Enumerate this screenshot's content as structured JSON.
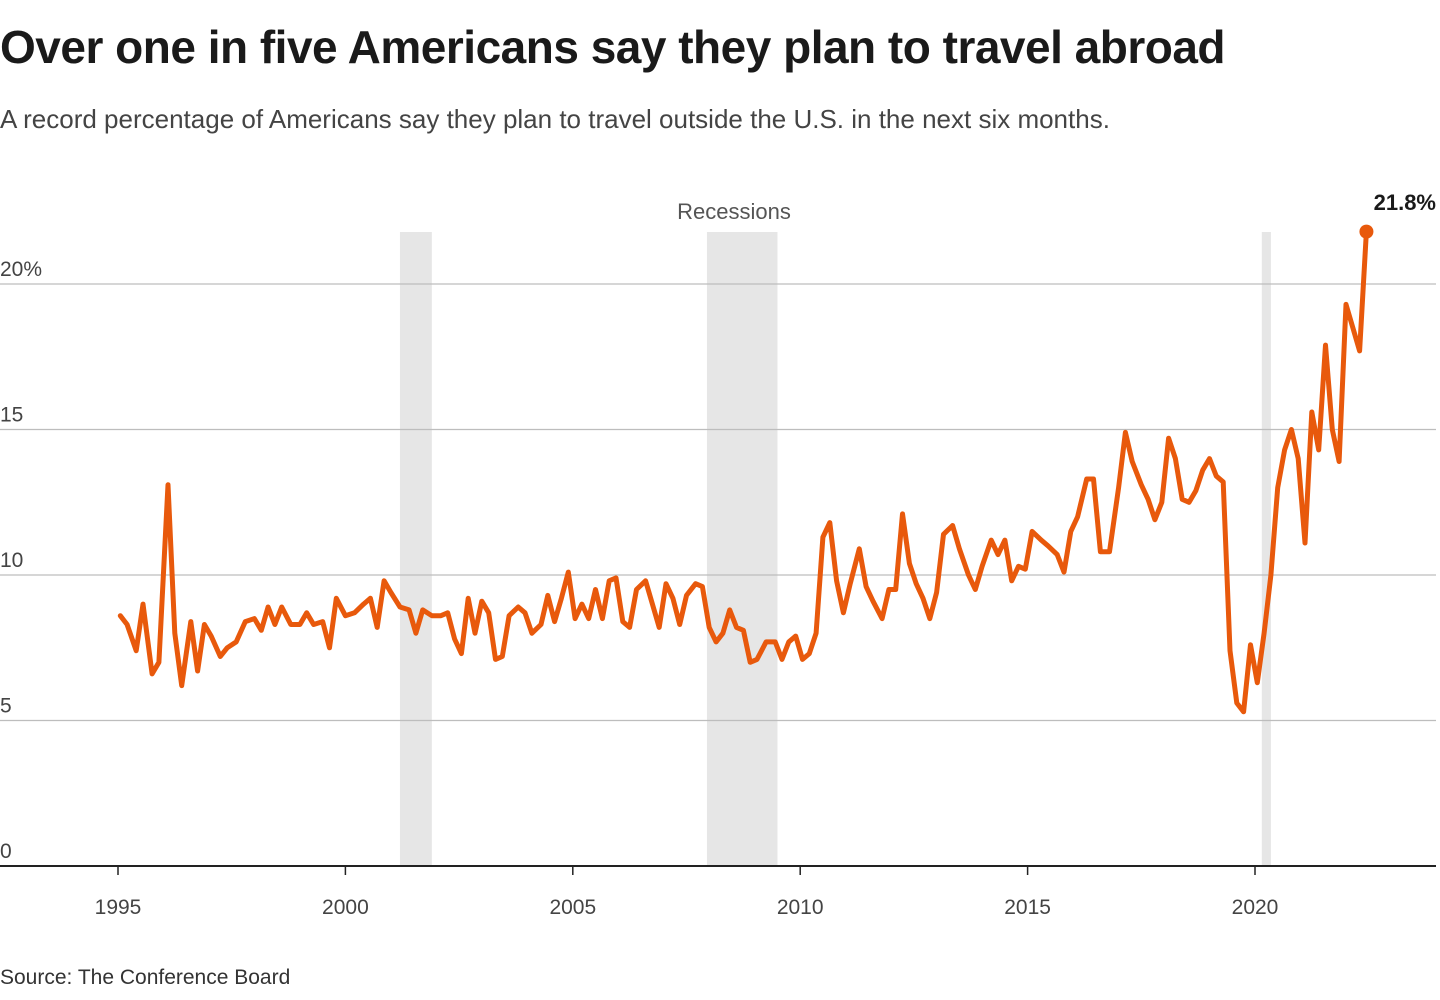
{
  "title": "Over one in five Americans say they plan to travel abroad",
  "subtitle": "A record percentage of Americans say they plan to travel outside the U.S. in the next six months.",
  "source": "Source: The Conference Board",
  "colors": {
    "line": "#e8590c",
    "recession": "#e6e6e6",
    "grid": "#bdbdbd",
    "axis": "#222222"
  },
  "chart_data": {
    "type": "line",
    "title": "Over one in five Americans say they plan to travel abroad",
    "xlabel": "",
    "ylabel": "",
    "ylim": [
      0,
      20
    ],
    "xlim": [
      1994.8,
      2023.8
    ],
    "y_ticks": [
      {
        "value": 0,
        "label": "0"
      },
      {
        "value": 5,
        "label": "5"
      },
      {
        "value": 10,
        "label": "10"
      },
      {
        "value": 15,
        "label": "15"
      },
      {
        "value": 20,
        "label": "20%"
      }
    ],
    "x_ticks": [
      {
        "value": 1995,
        "label": "1995"
      },
      {
        "value": 2000,
        "label": "2000"
      },
      {
        "value": 2005,
        "label": "2005"
      },
      {
        "value": 2010,
        "label": "2010"
      },
      {
        "value": 2015,
        "label": "2015"
      },
      {
        "value": 2020,
        "label": "2020"
      }
    ],
    "grid": true,
    "recessions_label": "Recessions",
    "recessions": [
      [
        2001.2,
        2001.9
      ],
      [
        2007.95,
        2009.5
      ],
      [
        2020.15,
        2020.35
      ]
    ],
    "annotation": {
      "x": 2023.6,
      "y": 21.8,
      "label": "21.8%"
    },
    "series": [
      {
        "points": [
          [
            1995.05,
            8.6
          ],
          [
            1995.2,
            8.3
          ],
          [
            1995.4,
            7.4
          ],
          [
            1995.55,
            9.0
          ],
          [
            1995.75,
            6.6
          ],
          [
            1995.9,
            7.0
          ],
          [
            1996.1,
            13.1
          ],
          [
            1996.25,
            8.0
          ],
          [
            1996.4,
            6.2
          ],
          [
            1996.6,
            8.4
          ],
          [
            1996.75,
            6.7
          ],
          [
            1996.9,
            8.3
          ],
          [
            1997.05,
            7.9
          ],
          [
            1997.25,
            7.2
          ],
          [
            1997.4,
            7.5
          ],
          [
            1997.6,
            7.7
          ],
          [
            1997.8,
            8.4
          ],
          [
            1998.0,
            8.5
          ],
          [
            1998.15,
            8.1
          ],
          [
            1998.3,
            8.9
          ],
          [
            1998.45,
            8.3
          ],
          [
            1998.6,
            8.9
          ],
          [
            1998.8,
            8.3
          ],
          [
            1999.0,
            8.3
          ],
          [
            1999.15,
            8.7
          ],
          [
            1999.3,
            8.3
          ],
          [
            1999.5,
            8.4
          ],
          [
            1999.65,
            7.5
          ],
          [
            1999.8,
            9.2
          ],
          [
            2000.0,
            8.6
          ],
          [
            2000.2,
            8.7
          ],
          [
            2000.4,
            9.0
          ],
          [
            2000.55,
            9.2
          ],
          [
            2000.7,
            8.2
          ],
          [
            2000.85,
            9.8
          ],
          [
            2001.0,
            9.4
          ],
          [
            2001.2,
            8.9
          ],
          [
            2001.4,
            8.8
          ],
          [
            2001.55,
            8.0
          ],
          [
            2001.7,
            8.8
          ],
          [
            2001.9,
            8.6
          ],
          [
            2002.1,
            8.6
          ],
          [
            2002.25,
            8.7
          ],
          [
            2002.4,
            7.8
          ],
          [
            2002.55,
            7.3
          ],
          [
            2002.7,
            9.2
          ],
          [
            2002.85,
            8.0
          ],
          [
            2003.0,
            9.1
          ],
          [
            2003.15,
            8.7
          ],
          [
            2003.3,
            7.1
          ],
          [
            2003.45,
            7.2
          ],
          [
            2003.6,
            8.6
          ],
          [
            2003.8,
            8.9
          ],
          [
            2003.95,
            8.7
          ],
          [
            2004.1,
            8.0
          ],
          [
            2004.3,
            8.3
          ],
          [
            2004.45,
            9.3
          ],
          [
            2004.6,
            8.4
          ],
          [
            2004.75,
            9.2
          ],
          [
            2004.9,
            10.1
          ],
          [
            2005.05,
            8.5
          ],
          [
            2005.2,
            9.0
          ],
          [
            2005.35,
            8.5
          ],
          [
            2005.5,
            9.5
          ],
          [
            2005.65,
            8.5
          ],
          [
            2005.8,
            9.8
          ],
          [
            2005.95,
            9.9
          ],
          [
            2006.1,
            8.4
          ],
          [
            2006.25,
            8.2
          ],
          [
            2006.4,
            9.5
          ],
          [
            2006.6,
            9.8
          ],
          [
            2006.75,
            9.0
          ],
          [
            2006.9,
            8.2
          ],
          [
            2007.05,
            9.7
          ],
          [
            2007.2,
            9.2
          ],
          [
            2007.35,
            8.3
          ],
          [
            2007.5,
            9.3
          ],
          [
            2007.7,
            9.7
          ],
          [
            2007.85,
            9.6
          ],
          [
            2008.0,
            8.2
          ],
          [
            2008.15,
            7.7
          ],
          [
            2008.3,
            8.0
          ],
          [
            2008.45,
            8.8
          ],
          [
            2008.6,
            8.2
          ],
          [
            2008.75,
            8.1
          ],
          [
            2008.9,
            7.0
          ],
          [
            2009.05,
            7.1
          ],
          [
            2009.25,
            7.7
          ],
          [
            2009.45,
            7.7
          ],
          [
            2009.6,
            7.1
          ],
          [
            2009.75,
            7.7
          ],
          [
            2009.9,
            7.9
          ],
          [
            2010.05,
            7.1
          ],
          [
            2010.2,
            7.3
          ],
          [
            2010.35,
            8.0
          ],
          [
            2010.5,
            11.3
          ],
          [
            2010.65,
            11.8
          ],
          [
            2010.8,
            9.8
          ],
          [
            2010.95,
            8.7
          ],
          [
            2011.1,
            9.7
          ],
          [
            2011.3,
            10.9
          ],
          [
            2011.45,
            9.6
          ],
          [
            2011.6,
            9.1
          ],
          [
            2011.8,
            8.5
          ],
          [
            2011.95,
            9.5
          ],
          [
            2012.1,
            9.5
          ],
          [
            2012.25,
            12.1
          ],
          [
            2012.4,
            10.4
          ],
          [
            2012.55,
            9.7
          ],
          [
            2012.7,
            9.2
          ],
          [
            2012.85,
            8.5
          ],
          [
            2013.0,
            9.4
          ],
          [
            2013.15,
            11.4
          ],
          [
            2013.35,
            11.7
          ],
          [
            2013.5,
            10.9
          ],
          [
            2013.7,
            10.0
          ],
          [
            2013.85,
            9.5
          ],
          [
            2014.0,
            10.3
          ],
          [
            2014.2,
            11.2
          ],
          [
            2014.35,
            10.7
          ],
          [
            2014.5,
            11.2
          ],
          [
            2014.65,
            9.8
          ],
          [
            2014.8,
            10.3
          ],
          [
            2014.95,
            10.2
          ],
          [
            2015.1,
            11.5
          ],
          [
            2015.3,
            11.2
          ],
          [
            2015.45,
            11.0
          ],
          [
            2015.65,
            10.7
          ],
          [
            2015.8,
            10.1
          ],
          [
            2015.95,
            11.5
          ],
          [
            2016.1,
            12.0
          ],
          [
            2016.3,
            13.3
          ],
          [
            2016.45,
            13.3
          ],
          [
            2016.6,
            10.8
          ],
          [
            2016.8,
            10.8
          ],
          [
            2017.0,
            13.0
          ],
          [
            2017.15,
            14.9
          ],
          [
            2017.3,
            13.9
          ],
          [
            2017.5,
            13.1
          ],
          [
            2017.65,
            12.6
          ],
          [
            2017.8,
            11.9
          ],
          [
            2017.95,
            12.5
          ],
          [
            2018.1,
            14.7
          ],
          [
            2018.25,
            14.0
          ],
          [
            2018.4,
            12.6
          ],
          [
            2018.55,
            12.5
          ],
          [
            2018.7,
            12.9
          ],
          [
            2018.85,
            13.6
          ],
          [
            2019.0,
            14.0
          ],
          [
            2019.15,
            13.4
          ],
          [
            2019.3,
            13.2
          ],
          [
            2019.45,
            7.4
          ],
          [
            2019.6,
            5.6
          ],
          [
            2019.75,
            5.3
          ],
          [
            2019.9,
            7.6
          ],
          [
            2020.05,
            6.3
          ],
          [
            2020.2,
            8.0
          ],
          [
            2020.35,
            10.0
          ],
          [
            2020.5,
            13.0
          ],
          [
            2020.65,
            14.3
          ],
          [
            2020.8,
            15.0
          ],
          [
            2020.95,
            14.0
          ],
          [
            2021.1,
            11.1
          ],
          [
            2021.25,
            15.6
          ],
          [
            2021.4,
            14.3
          ],
          [
            2021.55,
            17.9
          ],
          [
            2021.7,
            15.0
          ],
          [
            2021.85,
            13.9
          ],
          [
            2022.0,
            19.3
          ],
          [
            2022.15,
            18.5
          ],
          [
            2022.3,
            17.7
          ],
          [
            2022.45,
            21.8
          ]
        ]
      }
    ]
  }
}
